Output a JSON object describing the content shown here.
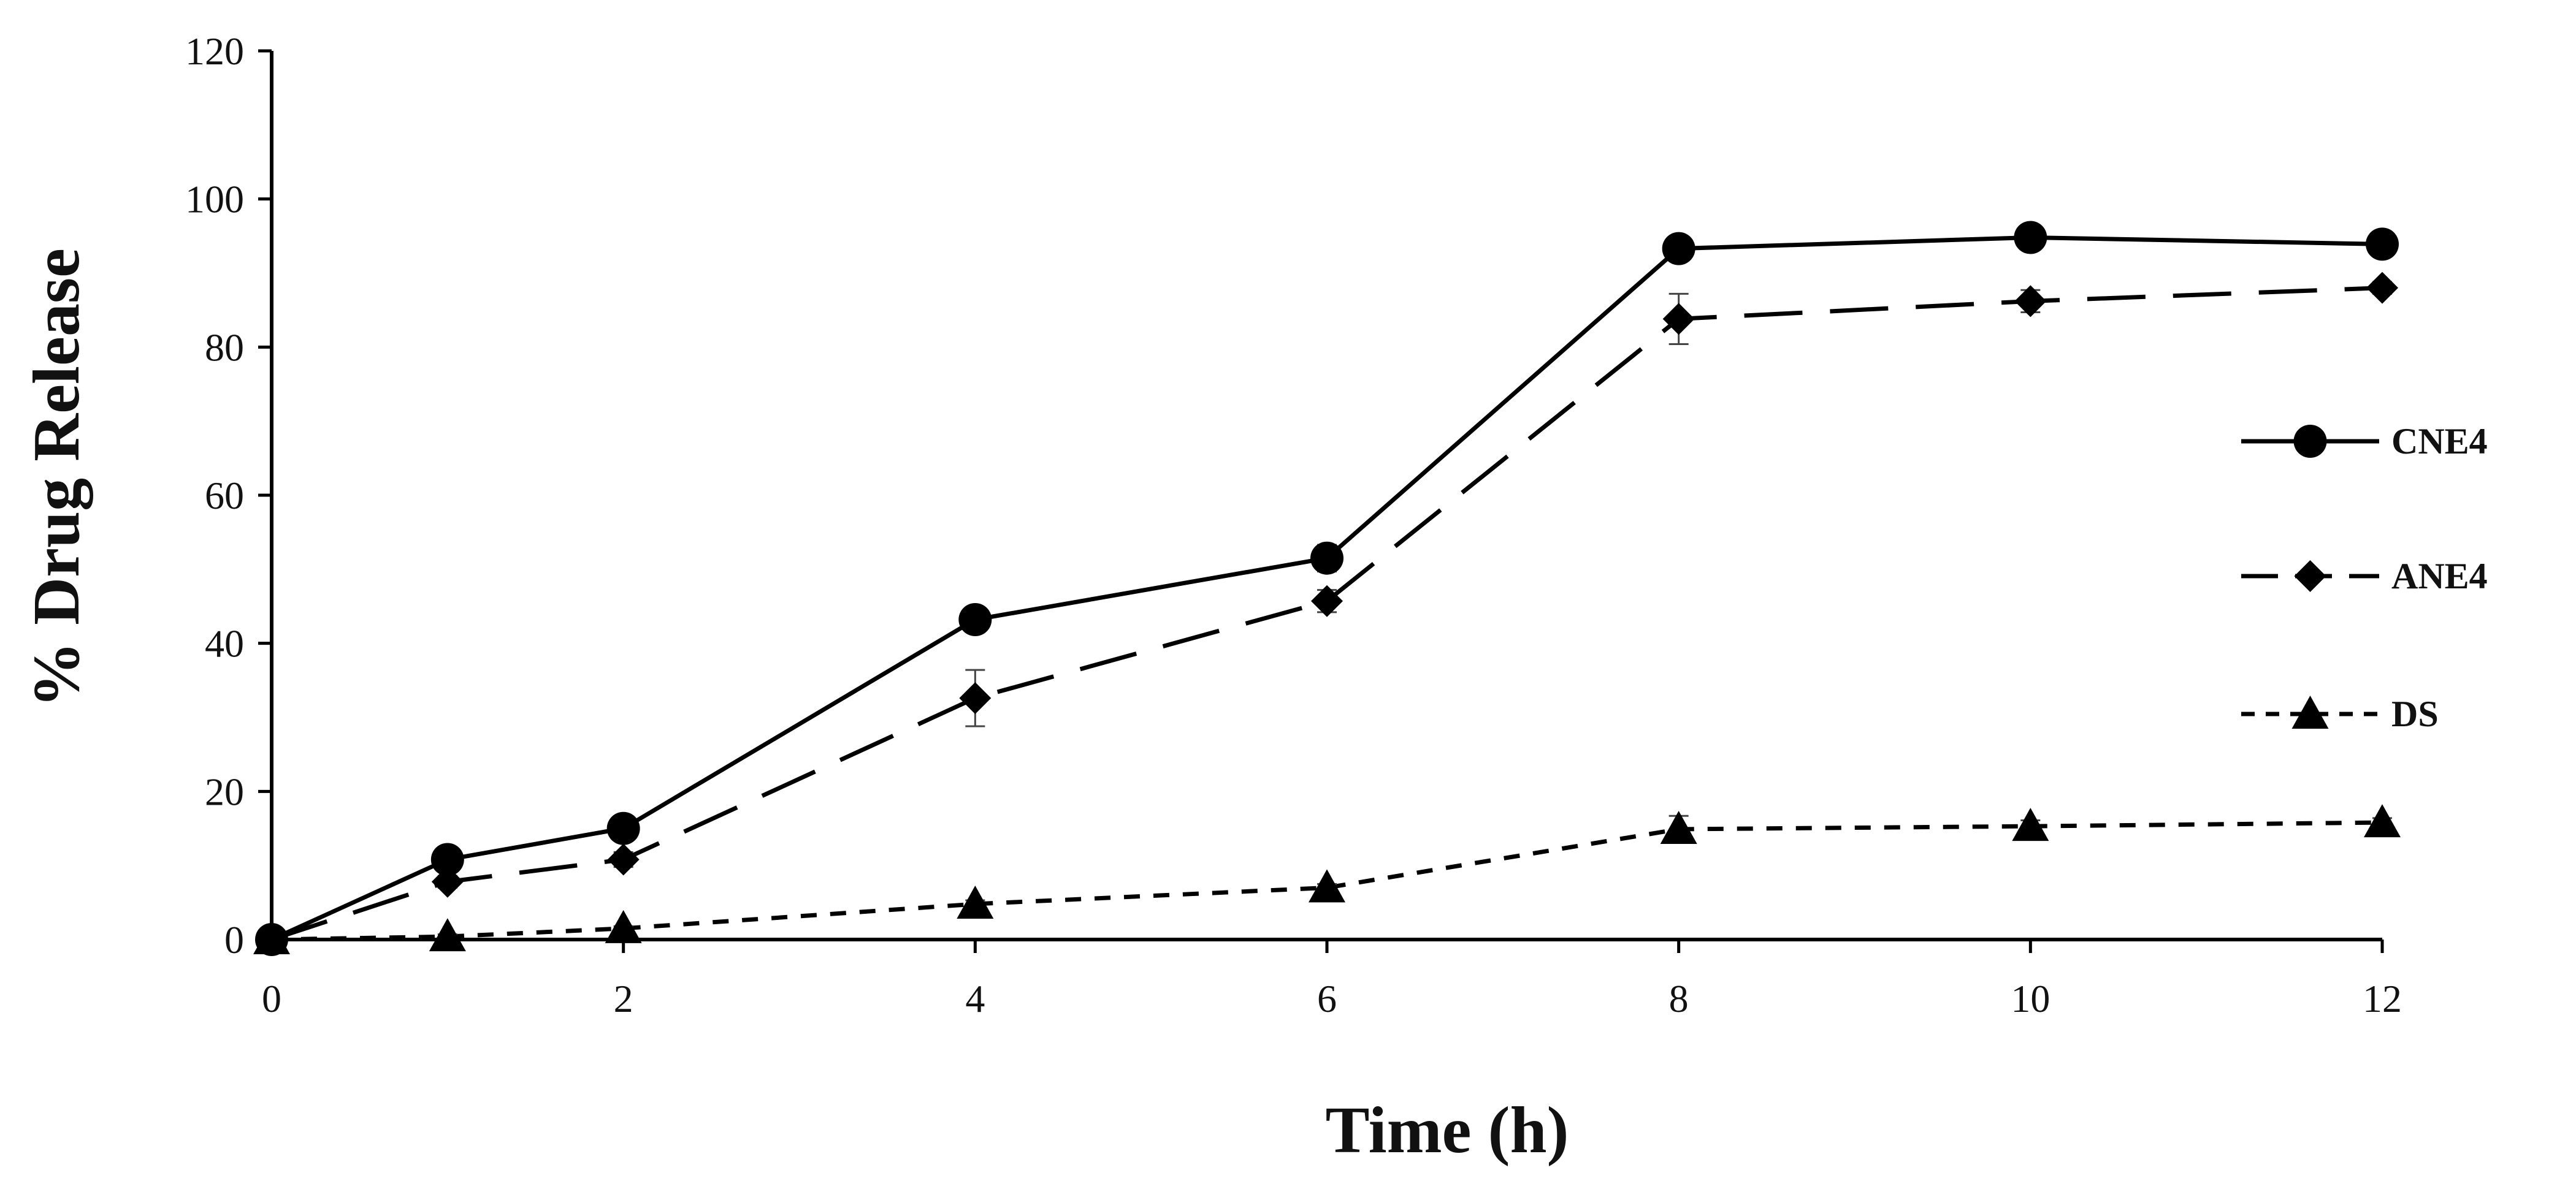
{
  "chart_data": {
    "type": "line",
    "title": "",
    "xlabel": "Time (h)",
    "ylabel": "% Drug Release",
    "x": [
      0,
      1,
      2,
      4,
      6,
      8,
      10,
      12
    ],
    "xlim": [
      0,
      12
    ],
    "ylim": [
      0,
      120
    ],
    "xticks": [
      "0",
      "2",
      "4",
      "6",
      "8",
      "10",
      "12"
    ],
    "yticks": [
      "0",
      "20",
      "40",
      "60",
      "80",
      "100",
      "120"
    ],
    "grid": false,
    "legend_position": "right",
    "series": [
      {
        "name": "CNE4",
        "values": [
          0,
          10.8,
          15.0,
          43.2,
          51.5,
          93.3,
          94.8,
          93.9
        ],
        "errors": [
          0,
          0.8,
          1.5,
          0.8,
          1.8,
          1.0,
          0.8,
          0.8
        ],
        "marker": "circle",
        "line_style": "solid",
        "color": "#000000"
      },
      {
        "name": "ANE4",
        "values": [
          0,
          7.8,
          10.8,
          32.6,
          45.7,
          83.8,
          86.2,
          88.0
        ],
        "errors": [
          0,
          0.8,
          1.0,
          3.8,
          1.5,
          3.4,
          1.5,
          0.8
        ],
        "marker": "diamond",
        "line_style": "long-dash",
        "color": "#000000"
      },
      {
        "name": "DS",
        "values": [
          0,
          0.4,
          1.5,
          4.8,
          7.0,
          14.9,
          15.3,
          15.8
        ],
        "errors": [
          0,
          0.3,
          0.3,
          0.5,
          0.5,
          1.8,
          0.8,
          0.6
        ],
        "marker": "triangle",
        "line_style": "short-dash",
        "color": "#000000"
      }
    ]
  }
}
